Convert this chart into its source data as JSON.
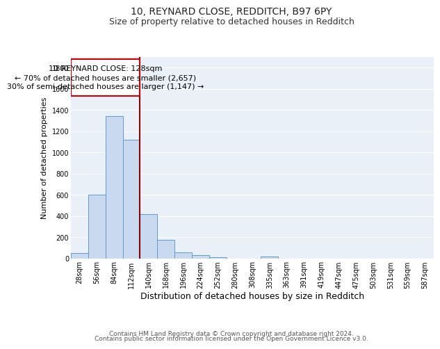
{
  "title1": "10, REYNARD CLOSE, REDDITCH, B97 6PY",
  "title2": "Size of property relative to detached houses in Redditch",
  "xlabel": "Distribution of detached houses by size in Redditch",
  "ylabel": "Number of detached properties",
  "categories": [
    "28sqm",
    "56sqm",
    "84sqm",
    "112sqm",
    "140sqm",
    "168sqm",
    "196sqm",
    "224sqm",
    "252sqm",
    "280sqm",
    "308sqm",
    "335sqm",
    "363sqm",
    "391sqm",
    "419sqm",
    "447sqm",
    "475sqm",
    "503sqm",
    "531sqm",
    "559sqm",
    "587sqm"
  ],
  "values": [
    55,
    600,
    1340,
    1120,
    420,
    175,
    60,
    35,
    10,
    0,
    0,
    20,
    0,
    0,
    0,
    0,
    0,
    0,
    0,
    0,
    0
  ],
  "bar_color": "#c9d9f0",
  "bar_edge_color": "#5b9bd5",
  "bg_color": "#eaf0f8",
  "grid_color": "#ffffff",
  "vline_color": "#8b0000",
  "annotation_line1": "10 REYNARD CLOSE: 128sqm",
  "annotation_line2": "← 70% of detached houses are smaller (2,657)",
  "annotation_line3": "30% of semi-detached houses are larger (1,147) →",
  "annotation_box_color": "#cc0000",
  "ylim": [
    0,
    1900
  ],
  "yticks": [
    0,
    200,
    400,
    600,
    800,
    1000,
    1200,
    1400,
    1600,
    1800
  ],
  "footnote_line1": "Contains HM Land Registry data © Crown copyright and database right 2024.",
  "footnote_line2": "Contains public sector information licensed under the Open Government Licence v3.0.",
  "title1_fontsize": 10,
  "title2_fontsize": 9,
  "xlabel_fontsize": 9,
  "ylabel_fontsize": 8,
  "tick_fontsize": 7,
  "annotation_fontsize": 8,
  "footnote_fontsize": 6.5
}
